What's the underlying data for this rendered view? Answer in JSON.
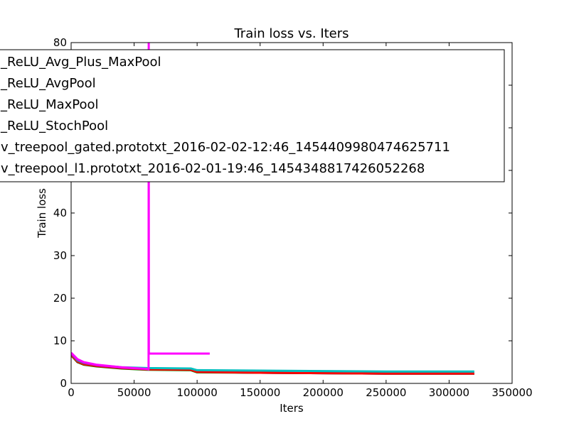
{
  "chart_data": {
    "type": "line",
    "title": "Train loss  vs. Iters",
    "xlabel": "Iters",
    "ylabel": "Train loss",
    "xlim": [
      0,
      350000
    ],
    "ylim": [
      0,
      80
    ],
    "xticks": [
      0,
      50000,
      100000,
      150000,
      200000,
      250000,
      300000,
      350000
    ],
    "yticks": [
      0,
      10,
      20,
      30,
      40,
      50,
      60,
      70,
      80
    ],
    "xtick_labels": [
      "0",
      "50000",
      "100000",
      "150000",
      "200000",
      "250000",
      "300000",
      "350000"
    ],
    "ytick_labels": [
      "0",
      "10",
      "20",
      "30",
      "40",
      "50",
      "60",
      "70",
      "80"
    ],
    "grid": false,
    "legend_position": "upper",
    "series": [
      {
        "name": "_ReLU_Avg_Plus_MaxPool",
        "color": "#0000ff",
        "x": [
          0,
          5000,
          10000,
          20000,
          40000,
          60000,
          95000,
          100000,
          150000,
          200000,
          250000,
          300000,
          320000
        ],
        "y": [
          6.8,
          5.0,
          4.5,
          4.1,
          3.6,
          3.3,
          3.2,
          2.7,
          2.5,
          2.4,
          2.3,
          2.3,
          2.3
        ]
      },
      {
        "name": "_ReLU_AvgPool",
        "color": "#008000",
        "x": [
          0,
          5000,
          10000,
          20000,
          40000,
          60000,
          95000,
          100000,
          150000,
          200000,
          250000,
          300000,
          320000
        ],
        "y": [
          6.6,
          5.0,
          4.4,
          4.0,
          3.5,
          3.2,
          3.1,
          2.6,
          2.5,
          2.4,
          2.3,
          2.3,
          2.3
        ]
      },
      {
        "name": "_ReLU_MaxPool",
        "color": "#ff0000",
        "x": [
          0,
          5000,
          10000,
          20000,
          40000,
          60000,
          95000,
          100000,
          150000,
          200000,
          250000,
          300000,
          320000
        ],
        "y": [
          6.7,
          5.1,
          4.5,
          4.1,
          3.6,
          3.3,
          3.2,
          2.7,
          2.5,
          2.4,
          2.3,
          2.3,
          2.3
        ]
      },
      {
        "name": "_ReLU_StochPool",
        "color": "#00bfbf",
        "x": [
          0,
          5000,
          10000,
          20000,
          40000,
          60000,
          95000,
          100000,
          150000,
          200000,
          250000,
          300000,
          320000
        ],
        "y": [
          7.0,
          5.4,
          4.8,
          4.3,
          3.8,
          3.6,
          3.5,
          3.1,
          3.0,
          2.9,
          2.8,
          2.8,
          2.8
        ]
      },
      {
        "name": "v_treepool_gated.prototxt_2016-02-02-12:46_1454409980474625711",
        "color": "#bf00bf",
        "x": [
          0,
          5000,
          10000,
          20000,
          40000,
          60000,
          62000
        ],
        "y": [
          7.0,
          5.6,
          4.9,
          4.3,
          3.7,
          3.4,
          3.3
        ]
      },
      {
        "name": "v_treepool_l1.prototxt_2016-02-01-19:46_1454348817426052268",
        "color": "#ff00ff",
        "x": [
          0,
          5000,
          10000,
          20000,
          40000,
          60000,
          61500,
          61600,
          61700,
          62000,
          110000
        ],
        "y": [
          7.2,
          5.7,
          5.0,
          4.4,
          3.8,
          3.4,
          3.3,
          80,
          7.0,
          7.0,
          7.0
        ]
      }
    ]
  }
}
